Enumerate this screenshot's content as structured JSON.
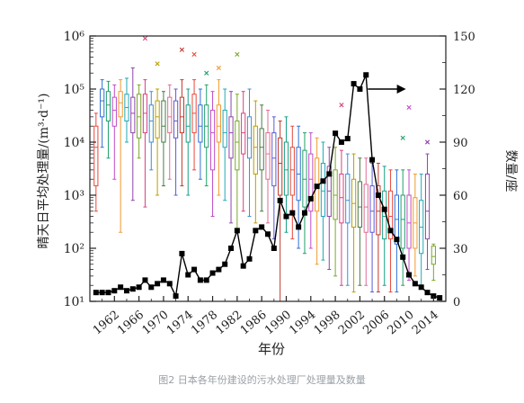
{
  "caption": "图2 日本各年份建设的污水处理厂处理量及数量",
  "colors": {
    "axis": "#222222",
    "count_line": "#000000",
    "box_palette": [
      "#e8483b",
      "#2f6fd6",
      "#21a06a",
      "#c04bc7",
      "#f29a2e",
      "#20a9b5",
      "#8e44ad",
      "#7aa72b",
      "#d6427f",
      "#3b8fd9",
      "#b8a000",
      "#4a7a46",
      "#e06b94",
      "#5a5ad8",
      "#c0392b",
      "#16a085"
    ]
  },
  "chart_data": {
    "type": "box",
    "title": "",
    "xlabel": "年份",
    "ylabel_left": "晴天日平均处理量/(m³·d⁻¹)",
    "ylabel_right": "数量/座",
    "x_ticks": [
      1962,
      1966,
      1970,
      1974,
      1978,
      1982,
      1986,
      1990,
      1994,
      1998,
      2002,
      2006,
      2010,
      2014
    ],
    "x_range": [
      1958,
      2016
    ],
    "y_left": {
      "scale": "log",
      "range": [
        10,
        1000000
      ],
      "ticks": [
        "10¹",
        "10²",
        "10³",
        "10⁴",
        "10⁵",
        "10⁶"
      ]
    },
    "y_right": {
      "scale": "linear",
      "range": [
        0,
        150
      ],
      "ticks": [
        0,
        30,
        60,
        90,
        120,
        150
      ]
    },
    "annotation": "arrow pointing right at the count series peak (about 2001), indicating it uses the right axis",
    "box_series": [
      {
        "year": 1959,
        "q1": 1500,
        "median": 8000,
        "q3": 20000,
        "whisker_low": 500,
        "whisker_high": 35000,
        "outliers": []
      },
      {
        "year": 1960,
        "q1": 30000,
        "median": 60000,
        "q3": 100000,
        "whisker_low": 8000,
        "whisker_high": 150000,
        "outliers": []
      },
      {
        "year": 1961,
        "q1": 25000,
        "median": 50000,
        "q3": 90000,
        "whisker_low": 5000,
        "whisker_high": 140000,
        "outliers": []
      },
      {
        "year": 1962,
        "q1": 20000,
        "median": 40000,
        "q3": 70000,
        "whisker_low": 2000,
        "whisker_high": 120000,
        "outliers": []
      },
      {
        "year": 1963,
        "q1": 30000,
        "median": 55000,
        "q3": 90000,
        "whisker_low": 200,
        "whisker_high": 150000,
        "outliers": []
      },
      {
        "year": 1964,
        "q1": 25000,
        "median": 45000,
        "q3": 80000,
        "whisker_low": 10000,
        "whisker_high": 160000,
        "outliers": []
      },
      {
        "year": 1965,
        "q1": 15000,
        "median": 35000,
        "q3": 70000,
        "whisker_low": 800,
        "whisker_high": 250000,
        "outliers": []
      },
      {
        "year": 1966,
        "q1": 12000,
        "median": 30000,
        "q3": 80000,
        "whisker_low": 5000,
        "whisker_high": 120000,
        "outliers": []
      },
      {
        "year": 1967,
        "q1": 15000,
        "median": 35000,
        "q3": 80000,
        "whisker_low": 600,
        "whisker_high": 150000,
        "outliers": [
          900000
        ]
      },
      {
        "year": 1968,
        "q1": 10000,
        "median": 25000,
        "q3": 50000,
        "whisker_low": 3000,
        "whisker_high": 90000,
        "outliers": []
      },
      {
        "year": 1969,
        "q1": 12000,
        "median": 30000,
        "q3": 60000,
        "whisker_low": 1000,
        "whisker_high": 100000,
        "outliers": [
          300000
        ]
      },
      {
        "year": 1970,
        "q1": 10000,
        "median": 20000,
        "q3": 60000,
        "whisker_low": 1500,
        "whisker_high": 90000,
        "outliers": []
      },
      {
        "year": 1971,
        "q1": 15000,
        "median": 30000,
        "q3": 70000,
        "whisker_low": 2000,
        "whisker_high": 120000,
        "outliers": []
      },
      {
        "year": 1972,
        "q1": 12000,
        "median": 25000,
        "q3": 60000,
        "whisker_low": 1000,
        "whisker_high": 100000,
        "outliers": []
      },
      {
        "year": 1973,
        "q1": 15000,
        "median": 30000,
        "q3": 70000,
        "whisker_low": 1500,
        "whisker_high": 150000,
        "outliers": [
          550000
        ]
      },
      {
        "year": 1974,
        "q1": 10000,
        "median": 20000,
        "q3": 50000,
        "whisker_low": 1000,
        "whisker_high": 100000,
        "outliers": []
      },
      {
        "year": 1975,
        "q1": 15000,
        "median": 35000,
        "q3": 80000,
        "whisker_low": 3000,
        "whisker_high": 150000,
        "outliers": [
          450000
        ]
      },
      {
        "year": 1976,
        "q1": 10000,
        "median": 20000,
        "q3": 50000,
        "whisker_low": 2000,
        "whisker_high": 100000,
        "outliers": []
      },
      {
        "year": 1977,
        "q1": 8000,
        "median": 20000,
        "q3": 50000,
        "whisker_low": 1500,
        "whisker_high": 120000,
        "outliers": [
          200000
        ]
      },
      {
        "year": 1978,
        "q1": 3000,
        "median": 15000,
        "q3": 40000,
        "whisker_low": 400,
        "whisker_high": 90000,
        "outliers": []
      },
      {
        "year": 1979,
        "q1": 10000,
        "median": 20000,
        "q3": 50000,
        "whisker_low": 1000,
        "whisker_high": 150000,
        "outliers": [
          250000
        ]
      },
      {
        "year": 1980,
        "q1": 8000,
        "median": 15000,
        "q3": 40000,
        "whisker_low": 800,
        "whisker_high": 100000,
        "outliers": []
      },
      {
        "year": 1981,
        "q1": 5000,
        "median": 15000,
        "q3": 30000,
        "whisker_low": 300,
        "whisker_high": 90000,
        "outliers": []
      },
      {
        "year": 1982,
        "q1": 3000,
        "median": 10000,
        "q3": 25000,
        "whisker_low": 200,
        "whisker_high": 80000,
        "outliers": [
          450000
        ]
      },
      {
        "year": 1983,
        "q1": 6000,
        "median": 15000,
        "q3": 35000,
        "whisker_low": 500,
        "whisker_high": 90000,
        "outliers": []
      },
      {
        "year": 1984,
        "q1": 5000,
        "median": 12000,
        "q3": 30000,
        "whisker_low": 400,
        "whisker_high": 100000,
        "outliers": []
      },
      {
        "year": 1985,
        "q1": 2500,
        "median": 8000,
        "q3": 20000,
        "whisker_low": 300,
        "whisker_high": 60000,
        "outliers": []
      },
      {
        "year": 1986,
        "q1": 3000,
        "median": 8000,
        "q3": 18000,
        "whisker_low": 500,
        "whisker_high": 50000,
        "outliers": []
      },
      {
        "year": 1987,
        "q1": 2000,
        "median": 6000,
        "q3": 15000,
        "whisker_low": 300,
        "whisker_high": 40000,
        "outliers": []
      },
      {
        "year": 1988,
        "q1": 1500,
        "median": 5000,
        "q3": 15000,
        "whisker_low": 150,
        "whisker_high": 30000,
        "outliers": []
      },
      {
        "year": 1989,
        "q1": 1000,
        "median": 4000,
        "q3": 12000,
        "whisker_low": 10,
        "whisker_high": 25000,
        "outliers": []
      },
      {
        "year": 1990,
        "q1": 1000,
        "median": 3000,
        "q3": 10000,
        "whisker_low": 200,
        "whisker_high": 30000,
        "outliers": []
      },
      {
        "year": 1991,
        "q1": 1000,
        "median": 3000,
        "q3": 8000,
        "whisker_low": 150,
        "whisker_high": 20000,
        "outliers": []
      },
      {
        "year": 1992,
        "q1": 800,
        "median": 2500,
        "q3": 8000,
        "whisker_low": 100,
        "whisker_high": 20000,
        "outliers": []
      },
      {
        "year": 1993,
        "q1": 600,
        "median": 2000,
        "q3": 7000,
        "whisker_low": 80,
        "whisker_high": 15000,
        "outliers": []
      },
      {
        "year": 1994,
        "q1": 500,
        "median": 2000,
        "q3": 6000,
        "whisker_low": 100,
        "whisker_high": 15000,
        "outliers": []
      },
      {
        "year": 1995,
        "q1": 500,
        "median": 1500,
        "q3": 5000,
        "whisker_low": 50,
        "whisker_high": 12000,
        "outliers": []
      },
      {
        "year": 1996,
        "q1": 400,
        "median": 1200,
        "q3": 4000,
        "whisker_low": 60,
        "whisker_high": 10000,
        "outliers": []
      },
      {
        "year": 1997,
        "q1": 400,
        "median": 1200,
        "q3": 3500,
        "whisker_low": 40,
        "whisker_high": 8000,
        "outliers": []
      },
      {
        "year": 1998,
        "q1": 350,
        "median": 1000,
        "q3": 3000,
        "whisker_low": 30,
        "whisker_high": 8000,
        "outliers": []
      },
      {
        "year": 1999,
        "q1": 300,
        "median": 900,
        "q3": 2500,
        "whisker_low": 20,
        "whisker_high": 7000,
        "outliers": [
          50000
        ]
      },
      {
        "year": 2000,
        "q1": 300,
        "median": 800,
        "q3": 2500,
        "whisker_low": 20,
        "whisker_high": 6000,
        "outliers": []
      },
      {
        "year": 2001,
        "q1": 250,
        "median": 700,
        "q3": 2000,
        "whisker_low": 15,
        "whisker_high": 6000,
        "outliers": []
      },
      {
        "year": 2002,
        "q1": 250,
        "median": 600,
        "q3": 1800,
        "whisker_low": 20,
        "whisker_high": 5000,
        "outliers": []
      },
      {
        "year": 2003,
        "q1": 200,
        "median": 600,
        "q3": 1600,
        "whisker_low": 20,
        "whisker_high": 5000,
        "outliers": []
      },
      {
        "year": 2004,
        "q1": 200,
        "median": 500,
        "q3": 1500,
        "whisker_low": 15,
        "whisker_high": 4000,
        "outliers": []
      },
      {
        "year": 2005,
        "q1": 180,
        "median": 500,
        "q3": 1500,
        "whisker_low": 15,
        "whisker_high": 4000,
        "outliers": []
      },
      {
        "year": 2006,
        "q1": 150,
        "median": 400,
        "q3": 1200,
        "whisker_low": 20,
        "whisker_high": 3500,
        "outliers": []
      },
      {
        "year": 2007,
        "q1": 150,
        "median": 400,
        "q3": 1200,
        "whisker_low": 15,
        "whisker_high": 3000,
        "outliers": []
      },
      {
        "year": 2008,
        "q1": 120,
        "median": 350,
        "q3": 1000,
        "whisker_low": 15,
        "whisker_high": 3000,
        "outliers": []
      },
      {
        "year": 2009,
        "q1": 100,
        "median": 350,
        "q3": 1000,
        "whisker_low": 20,
        "whisker_high": 3000,
        "outliers": [
          12000
        ]
      },
      {
        "year": 2010,
        "q1": 100,
        "median": 300,
        "q3": 1000,
        "whisker_low": 25,
        "whisker_high": 3000,
        "outliers": [
          45000
        ]
      },
      {
        "year": 2011,
        "q1": 100,
        "median": 300,
        "q3": 900,
        "whisker_low": 30,
        "whisker_high": 2500,
        "outliers": []
      },
      {
        "year": 2012,
        "q1": 80,
        "median": 250,
        "q3": 800,
        "whisker_low": 20,
        "whisker_high": 2500,
        "outliers": []
      },
      {
        "year": 2013,
        "q1": 150,
        "median": 500,
        "q3": 2500,
        "whisker_low": 40,
        "whisker_high": 6000,
        "outliers": [
          10000
        ]
      },
      {
        "year": 2014,
        "q1": 50,
        "median": 70,
        "q3": 110,
        "whisker_low": 25,
        "whisker_high": 120,
        "outliers": []
      }
    ],
    "count_series": {
      "x": [
        1959,
        1960,
        1961,
        1962,
        1963,
        1964,
        1965,
        1966,
        1967,
        1968,
        1969,
        1970,
        1971,
        1972,
        1973,
        1974,
        1975,
        1976,
        1977,
        1978,
        1979,
        1980,
        1981,
        1982,
        1983,
        1984,
        1985,
        1986,
        1987,
        1988,
        1989,
        1990,
        1991,
        1992,
        1993,
        1994,
        1995,
        1996,
        1997,
        1998,
        1999,
        2000,
        2001,
        2002,
        2003,
        2004,
        2005,
        2006,
        2007,
        2008,
        2009,
        2010,
        2011,
        2012,
        2013,
        2014,
        2015
      ],
      "y": [
        5,
        5,
        5,
        6,
        8,
        6,
        7,
        8,
        12,
        8,
        10,
        12,
        10,
        3,
        27,
        15,
        18,
        12,
        12,
        16,
        18,
        21,
        30,
        40,
        20,
        24,
        40,
        42,
        38,
        30,
        57,
        48,
        50,
        42,
        50,
        58,
        65,
        68,
        72,
        95,
        90,
        92,
        123,
        120,
        128,
        80,
        60,
        52,
        40,
        35,
        25,
        15,
        10,
        8,
        5,
        3,
        2
      ]
    }
  }
}
